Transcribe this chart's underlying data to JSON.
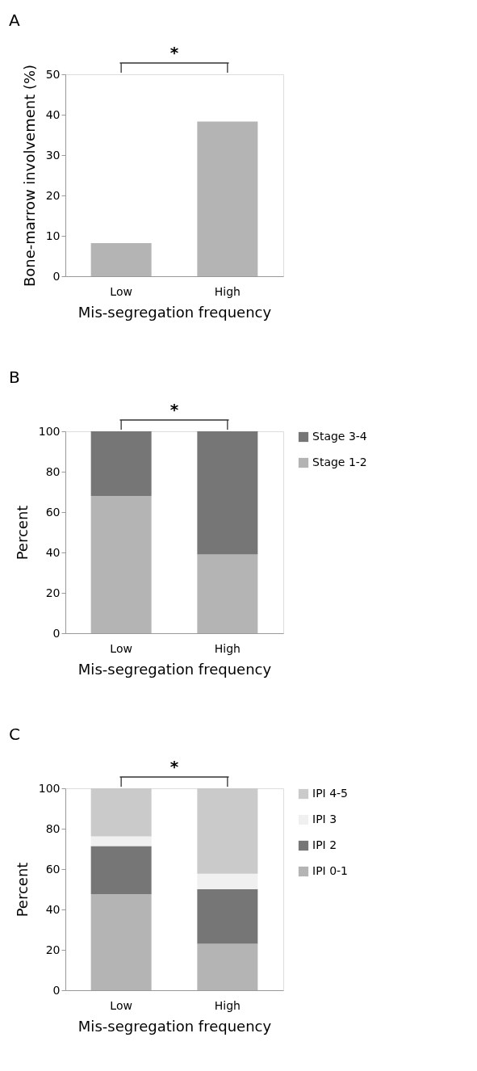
{
  "chart_data": [
    {
      "type": "bar",
      "title": "A",
      "xlabel": "Mis-segregation frequency",
      "ylabel": "Bone-marrow involvement (%)",
      "categories": [
        "Low",
        "High"
      ],
      "values": [
        8.2,
        38.3
      ],
      "color": "#b4b4b4",
      "ylim": [
        0,
        50
      ],
      "yticks": [
        0,
        10,
        20,
        30,
        40,
        50
      ],
      "annotations": [
        "*"
      ]
    },
    {
      "type": "bar",
      "title": "B",
      "xlabel": "Mis-segregation frequency",
      "ylabel": "Percent",
      "categories": [
        "Low",
        "High"
      ],
      "stacked": true,
      "legend": "right",
      "ylim": [
        0,
        100
      ],
      "yticks": [
        0,
        20,
        40,
        60,
        80,
        100
      ],
      "annotations": [
        "*"
      ],
      "series": [
        {
          "name": "Stage 1-2",
          "color": "#b4b4b4",
          "values": [
            68,
            39
          ]
        },
        {
          "name": "Stage 3-4",
          "color": "#767676",
          "values": [
            32,
            61
          ]
        }
      ]
    },
    {
      "type": "bar",
      "title": "C",
      "xlabel": "Mis-segregation frequency",
      "ylabel": "Percent",
      "categories": [
        "Low",
        "High"
      ],
      "stacked": true,
      "legend": "right",
      "ylim": [
        0,
        100
      ],
      "yticks": [
        0,
        20,
        40,
        60,
        80,
        100
      ],
      "annotations": [
        "*"
      ],
      "series": [
        {
          "name": "IPI 0-1",
          "color": "#b4b4b4",
          "values": [
            47.6,
            23
          ]
        },
        {
          "name": "IPI 2",
          "color": "#767676",
          "values": [
            23.8,
            27
          ]
        },
        {
          "name": "IPI 3",
          "color": "#f0f0f0",
          "values": [
            4.8,
            7.7
          ]
        },
        {
          "name": "IPI 4-5",
          "color": "#cacaca",
          "values": [
            23.8,
            42.3
          ]
        }
      ]
    }
  ]
}
